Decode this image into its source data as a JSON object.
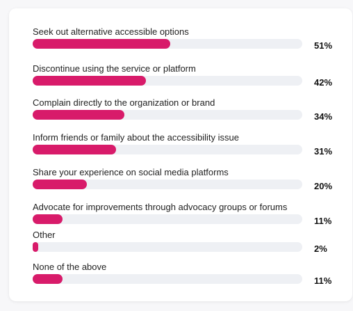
{
  "colors": {
    "bar_fill": "#d81b6a",
    "bar_track": "#eef0f4"
  },
  "chart_data": {
    "type": "bar",
    "orientation": "horizontal",
    "xlim": [
      0,
      100
    ],
    "grid": false,
    "legend": "none",
    "categories": [
      "Seek out alternative accessible options",
      "Discontinue using the service or platform",
      "Complain directly to the organization or brand",
      "Inform friends or family about the accessibility issue",
      "Share your experience on social media platforms",
      "Advocate for improvements through advocacy groups or forums",
      "Other",
      "None of the above"
    ],
    "values": [
      51,
      42,
      34,
      31,
      20,
      11,
      2,
      11
    ],
    "value_labels": [
      "51%",
      "42%",
      "34%",
      "31%",
      "20%",
      "11%",
      "2%",
      "11%"
    ]
  }
}
